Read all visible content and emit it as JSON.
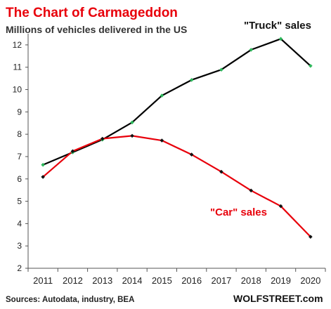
{
  "chart_data": {
    "type": "line",
    "title": "The Chart of Carmageddon",
    "subtitle": "Millions of vehicles delivered in the US",
    "x": [
      "2011",
      "2012",
      "2013",
      "2014",
      "2015",
      "2016",
      "2017",
      "2018",
      "2019",
      "2020"
    ],
    "ylim": [
      2,
      12.5
    ],
    "yticks": [
      2,
      3,
      4,
      5,
      6,
      7,
      8,
      9,
      10,
      11,
      12
    ],
    "grid": false,
    "series": [
      {
        "name": "\"Truck\" sales",
        "line_color": "#000000",
        "marker_color": "#2eb85c",
        "values": [
          6.63,
          7.19,
          7.76,
          8.53,
          9.73,
          10.43,
          10.89,
          11.78,
          12.27,
          11.06
        ]
      },
      {
        "name": "\"Car\" sales",
        "line_color": "#e8000b",
        "marker_color": "#111111",
        "values": [
          6.09,
          7.24,
          7.8,
          7.93,
          7.72,
          7.09,
          6.32,
          5.48,
          4.78,
          3.41
        ]
      }
    ],
    "colors": {
      "title": "#e8000b",
      "axis": "#555555"
    }
  },
  "footer": {
    "source": "Sources: Autodata, industry, BEA",
    "brand": "WOLFSTREET.com"
  }
}
